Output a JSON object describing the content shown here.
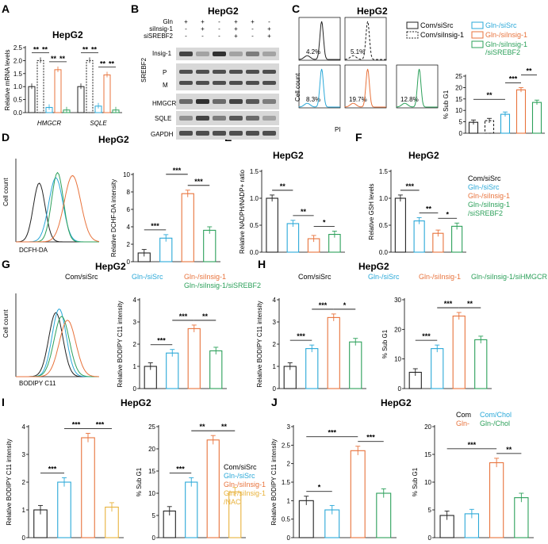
{
  "colors": {
    "com": "#222222",
    "gln": "#2aa8d8",
    "insig": "#e8733c",
    "srebf2": "#2ca05a",
    "nac": "#e8b23c"
  },
  "panels": {
    "A": {
      "letter": "A",
      "title": "HepG2",
      "ylabel": "Relative mRNA levels",
      "yticks": [
        "0.0",
        "0.5",
        "1.0",
        "1.5",
        "2.0",
        "2.5"
      ],
      "groups": [
        "HMGCR",
        "SQLE"
      ],
      "sig": [
        "**",
        "**",
        "**",
        "**",
        "**",
        "**",
        "**",
        "**"
      ]
    },
    "B": {
      "letter": "B",
      "title": "HepG2",
      "conds": [
        {
          "name": "Gln",
          "marks": [
            "+",
            "+",
            "-",
            "+",
            "+",
            "-"
          ]
        },
        {
          "name": "siInsig-1",
          "marks": [
            "-",
            "+",
            "-",
            "+",
            "-",
            "+"
          ]
        },
        {
          "name": "siSREBF2",
          "marks": [
            "-",
            "-",
            "-",
            "+",
            "-",
            "+"
          ]
        }
      ],
      "bands": [
        "Insig-1",
        "SREBF2",
        "HMGCR",
        "SQLE",
        "GAPDH"
      ],
      "srebf_pm": [
        "P",
        "M"
      ]
    },
    "C": {
      "letter": "C",
      "title": "HepG2",
      "pcts": [
        "4.2%",
        "5.1%",
        "8.3%",
        "19.7%",
        "12.8%"
      ],
      "ylabel": "Cell count",
      "xlabel": "PI",
      "legend": [
        "Com/siSrc",
        "Com/siInsig-1",
        "Gln-/siSrc",
        "Gln-/siInsig-1",
        "Gln-/siInsig-1",
        "/siSREBF2"
      ],
      "bar_ylabel": "% Sub G1",
      "yticks": [
        "0",
        "5",
        "10",
        "15",
        "20",
        "25"
      ],
      "sig": [
        "**",
        "***",
        "**"
      ]
    },
    "D": {
      "letter": "D",
      "title": "HepG2",
      "ylabel": "Cell count",
      "xlabel": "DCFH-DA",
      "bar_ylabel": "Relative DCHF-DA intensity",
      "yticks": [
        "0",
        "2",
        "4",
        "6",
        "8",
        "10"
      ],
      "sig": [
        "***",
        "***",
        "***"
      ]
    },
    "E": {
      "letter": "E",
      "title": "HepG2",
      "ylabel": "Relative NADPH/NADP+ ratio",
      "yticks": [
        "0.0",
        "0.5",
        "1.0",
        "1.5"
      ],
      "sig": [
        "**",
        "**",
        "*"
      ]
    },
    "F": {
      "letter": "F",
      "title": "HepG2",
      "ylabel": "Relative GSH levels",
      "yticks": [
        "0.0",
        "0.5",
        "1.0",
        "1.5"
      ],
      "sig": [
        "***",
        "**",
        "*"
      ],
      "legend": [
        "Com/siSrc",
        "Gln-/siSrc",
        "Gln-/siInsig-1",
        "Gln-/siInsig-1",
        "/siSREBF2"
      ]
    },
    "G": {
      "letter": "G",
      "title": "HepG2",
      "legend_top": [
        "Com/siSrc",
        "Gln-/siSrc",
        "Gln-/siInsig-1",
        "Gln-/siInsig-1/siSREBF2"
      ],
      "ylabel": "Cell count",
      "xlabel": "BODIPY C11",
      "bar_ylabel": "Relative BODIPY C11 intensity",
      "yticks": [
        "0",
        "1",
        "2",
        "3",
        "4"
      ],
      "sig": [
        "***",
        "***",
        "**"
      ]
    },
    "H": {
      "letter": "H",
      "title": "HepG2",
      "legend_top": [
        "Com/siSrc",
        "Gln-/siSrc",
        "Gln-/siInsig-1",
        "Gln-/siInsig-1/siHMGCR"
      ],
      "ylabel1": "Relative BODIPY C11 intensity",
      "yticks1": [
        "0",
        "1",
        "2",
        "3",
        "4"
      ],
      "sig1": [
        "***",
        "***",
        "*"
      ],
      "ylabel2": "% Sub G1",
      "yticks2": [
        "0",
        "10",
        "20",
        "30"
      ],
      "sig2": [
        "***",
        "***",
        "**"
      ]
    },
    "I": {
      "letter": "I",
      "title": "HepG2",
      "ylabel1": "Relative BODIPY C11 intensity",
      "yticks1": [
        "0",
        "1",
        "2",
        "3",
        "4"
      ],
      "sig1": [
        "***",
        "***",
        "***"
      ],
      "ylabel2": "% Sub G1",
      "yticks2": [
        "0",
        "5",
        "10",
        "15",
        "20",
        "25"
      ],
      "sig2": [
        "***",
        "**",
        "**"
      ],
      "legend": [
        "Com/siSrc",
        "Gln-/siSrc",
        "Gln-/siInsig-1",
        "Gln-/siInsig-1",
        "/NAC"
      ]
    },
    "J": {
      "letter": "J",
      "title": "HepG2",
      "legend_top": [
        "Com",
        "Com/Chol",
        "Gln-",
        "Gln-/Chol"
      ],
      "ylabel1": "Relative BODIPY C11 intensity",
      "yticks1": [
        "0",
        "0.5",
        "1",
        "1.5",
        "2",
        "2.5",
        "3"
      ],
      "sig1": [
        "*",
        "***",
        "***"
      ],
      "ylabel2": "% Sub G1",
      "yticks2": [
        "0",
        "5",
        "10",
        "15",
        "20"
      ],
      "sig2": [
        "***",
        "**"
      ]
    }
  },
  "chart_data": [
    {
      "panel": "A",
      "type": "bar",
      "categories": [
        "HMGCR",
        "SQLE"
      ],
      "ylim": [
        0,
        2.5
      ],
      "series": [
        {
          "values": [
            1.0,
            1.0
          ]
        },
        {
          "values": [
            2.0,
            2.0
          ]
        },
        {
          "values": [
            0.2,
            0.25
          ]
        },
        {
          "values": [
            1.65,
            1.45
          ]
        },
        {
          "values": [
            0.1,
            0.1
          ]
        }
      ]
    },
    {
      "panel": "C",
      "type": "bar",
      "ylim": [
        0,
        25
      ],
      "values": [
        4.8,
        5.5,
        8.3,
        19.0,
        13.5
      ]
    },
    {
      "panel": "D",
      "type": "bar",
      "ylim": [
        0,
        10
      ],
      "values": [
        1.0,
        2.7,
        7.8,
        3.6
      ]
    },
    {
      "panel": "E",
      "type": "bar",
      "ylim": [
        0,
        1.5
      ],
      "values": [
        1.0,
        0.53,
        0.25,
        0.33
      ]
    },
    {
      "panel": "F",
      "type": "bar",
      "ylim": [
        0,
        1.5
      ],
      "values": [
        1.0,
        0.58,
        0.35,
        0.48
      ]
    },
    {
      "panel": "G",
      "type": "bar",
      "ylim": [
        0,
        4
      ],
      "values": [
        1.0,
        1.6,
        2.7,
        1.7
      ]
    },
    {
      "panel": "H1",
      "type": "bar",
      "ylim": [
        0,
        4
      ],
      "values": [
        1.0,
        1.8,
        3.2,
        2.1
      ]
    },
    {
      "panel": "H2",
      "type": "bar",
      "ylim": [
        0,
        30
      ],
      "values": [
        5.5,
        13.5,
        24.5,
        16.5
      ]
    },
    {
      "panel": "I1",
      "type": "bar",
      "ylim": [
        0,
        4
      ],
      "values": [
        1.0,
        2.0,
        3.6,
        1.1
      ]
    },
    {
      "panel": "I2",
      "type": "bar",
      "ylim": [
        0,
        25
      ],
      "values": [
        6.0,
        12.5,
        22.0,
        10.3
      ]
    },
    {
      "panel": "J1",
      "type": "bar",
      "ylim": [
        0,
        3
      ],
      "values": [
        1.0,
        0.75,
        2.35,
        1.2
      ]
    },
    {
      "panel": "J2",
      "type": "bar",
      "ylim": [
        0,
        20
      ],
      "values": [
        4.0,
        4.3,
        13.5,
        7.2
      ]
    }
  ]
}
